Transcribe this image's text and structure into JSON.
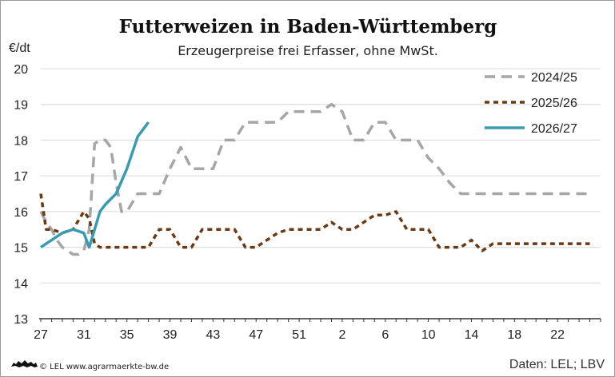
{
  "colors": {
    "s2425": "#a6a6a6",
    "s2526": "#6b3a14",
    "s2627": "#3a9ab0",
    "axis": "#333333"
  },
  "footer": {
    "credit": "© LEL www.agrarmaerkte-bw.de",
    "source": "Daten: LEL; LBV",
    "logo_icon": "baden-wuerttemberg-lion-icon"
  },
  "chart_data": {
    "type": "line",
    "title": "Futterweizen in Baden-Württemberg",
    "subtitle": "Erzeugerpreise frei Erfasser, ohne MwSt.",
    "ylabel": "€/dt",
    "ylim": [
      13,
      20
    ],
    "yticks": [
      13,
      14,
      15,
      16,
      17,
      18,
      19,
      20
    ],
    "xlabel": "",
    "x_tick_labels": [
      "27",
      "31",
      "35",
      "39",
      "43",
      "47",
      "51",
      "2",
      "6",
      "10",
      "14",
      "18",
      "22"
    ],
    "grid": "horizontal",
    "legend_position": "top-right",
    "x_note": "x values are sequential calendar weeks starting at week 27 (index 0); week 27 through week 52, then week 1 onward",
    "series": [
      {
        "name": "2024/25",
        "style": "dashed",
        "x": [
          0,
          0.5,
          1,
          1.5,
          2,
          3,
          3.5,
          4,
          4.5,
          5,
          5.5,
          6,
          6.5,
          7,
          7.5,
          8,
          9,
          10,
          11,
          12,
          13,
          14,
          15,
          16,
          17,
          18,
          19,
          20,
          21,
          22,
          23,
          24,
          25,
          26,
          27,
          28,
          29,
          30,
          31,
          32,
          33,
          34,
          35,
          36,
          37,
          38,
          39,
          40,
          41,
          42,
          43,
          44,
          45,
          46,
          47,
          48,
          49,
          50,
          51
        ],
        "values": [
          16.0,
          15.7,
          15.5,
          15.2,
          15.0,
          14.8,
          14.8,
          14.9,
          15.5,
          17.9,
          18.0,
          18.0,
          17.8,
          16.8,
          16.0,
          16.0,
          16.5,
          16.5,
          16.5,
          17.2,
          17.8,
          17.2,
          17.2,
          17.2,
          18.0,
          18.0,
          18.5,
          18.5,
          18.5,
          18.5,
          18.8,
          18.8,
          18.8,
          18.8,
          19.0,
          18.8,
          18.0,
          18.0,
          18.5,
          18.5,
          18.0,
          18.0,
          18.0,
          17.5,
          17.2,
          16.8,
          16.5,
          16.5,
          16.5,
          16.5,
          16.5,
          16.5,
          16.5,
          16.5,
          16.5,
          16.5,
          16.5,
          16.5,
          16.5
        ],
        "note": "dashed grey line"
      },
      {
        "name": "2025/26",
        "style": "dotted",
        "x": [
          0,
          0.5,
          1,
          2,
          3,
          4,
          4.5,
          5,
          5.5,
          6,
          7,
          8,
          9,
          10,
          11,
          12,
          13,
          14,
          15,
          16,
          17,
          18,
          19,
          20,
          21,
          22,
          23,
          24,
          25,
          26,
          27,
          28,
          29,
          30,
          31,
          32,
          33,
          34,
          35,
          36,
          37,
          38,
          39,
          40,
          41,
          42,
          43,
          44,
          45,
          46,
          47,
          48,
          49,
          50,
          51
        ],
        "values": [
          16.5,
          15.5,
          15.5,
          15.4,
          15.5,
          16.0,
          15.8,
          15.1,
          15.0,
          15.0,
          15.0,
          15.0,
          15.0,
          15.0,
          15.5,
          15.5,
          15.0,
          15.0,
          15.5,
          15.5,
          15.5,
          15.5,
          15.0,
          15.0,
          15.2,
          15.4,
          15.5,
          15.5,
          15.5,
          15.5,
          15.7,
          15.5,
          15.5,
          15.7,
          15.9,
          15.9,
          16.0,
          15.5,
          15.5,
          15.5,
          15.0,
          15.0,
          15.0,
          15.2,
          14.9,
          15.1,
          15.1,
          15.1,
          15.1,
          15.1,
          15.1,
          15.1,
          15.1,
          15.1,
          15.1
        ],
        "note": "dotted brown line"
      },
      {
        "name": "2026/27",
        "style": "solid",
        "x": [
          0,
          1,
          2,
          3,
          4,
          4.5,
          5,
          5.5,
          6,
          7,
          8,
          9,
          10
        ],
        "values": [
          15.0,
          15.2,
          15.4,
          15.5,
          15.4,
          15.0,
          15.5,
          16.0,
          16.2,
          16.5,
          17.2,
          18.1,
          18.5
        ],
        "note": "solid teal line"
      }
    ]
  }
}
